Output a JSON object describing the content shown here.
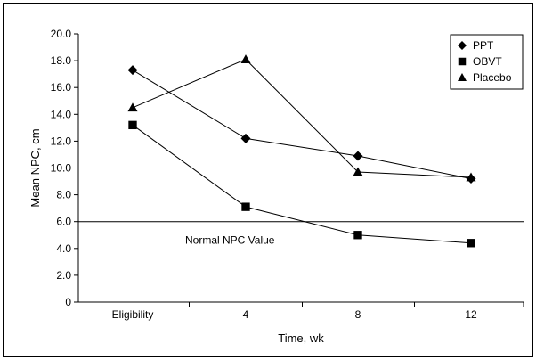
{
  "chart_data": {
    "type": "line",
    "title": "",
    "xlabel": "Time, wk",
    "ylabel": "Mean NPC, cm",
    "categories": [
      "Eligibility",
      "4",
      "8",
      "12"
    ],
    "ylim": [
      0,
      20
    ],
    "yticks": [
      "0",
      "2.0",
      "4.0",
      "6.0",
      "8.0",
      "10.0",
      "12.0",
      "14.0",
      "16.0",
      "18.0",
      "20.0"
    ],
    "grid": false,
    "legend_position": "top-right",
    "series": [
      {
        "name": "PPT",
        "marker": "diamond",
        "values": [
          17.3,
          12.2,
          10.9,
          9.2
        ]
      },
      {
        "name": "OBVT",
        "marker": "square",
        "values": [
          13.2,
          7.1,
          5.0,
          4.4
        ]
      },
      {
        "name": "Placebo",
        "marker": "triangle",
        "values": [
          14.5,
          18.1,
          9.7,
          9.3
        ]
      }
    ],
    "reference_line": {
      "value": 6.0,
      "label": "Normal NPC Value"
    },
    "colors": {
      "line": "#000000",
      "marker": "#000000",
      "background": "#ffffff"
    }
  }
}
